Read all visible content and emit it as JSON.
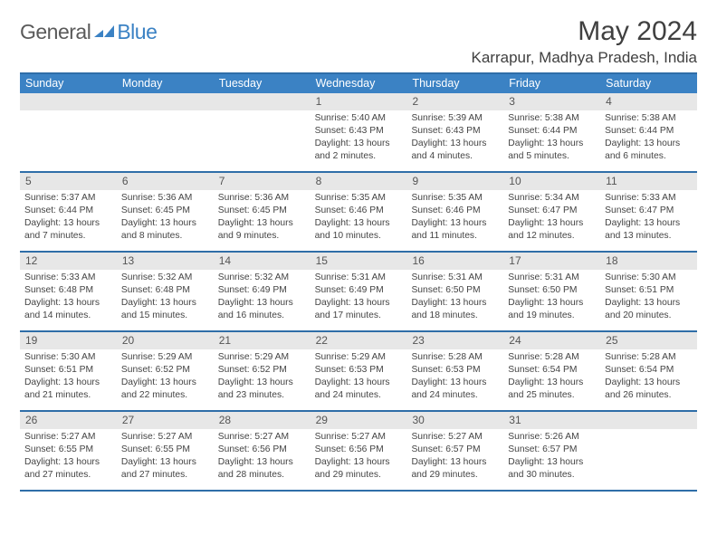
{
  "brand": {
    "part1": "General",
    "part2": "Blue",
    "accent": "#3b82c4",
    "text_color": "#5a5a5a"
  },
  "title": "May 2024",
  "location": "Karrapur, Madhya Pradesh, India",
  "colors": {
    "header_bg": "#3b82c4",
    "border": "#2f6ea8",
    "daynum_bg": "#e7e7e7",
    "page_bg": "#ffffff",
    "body_text": "#3a3a3a"
  },
  "day_names": [
    "Sunday",
    "Monday",
    "Tuesday",
    "Wednesday",
    "Thursday",
    "Friday",
    "Saturday"
  ],
  "weeks": [
    [
      {
        "n": "",
        "sunrise": "",
        "sunset": "",
        "daylight": ""
      },
      {
        "n": "",
        "sunrise": "",
        "sunset": "",
        "daylight": ""
      },
      {
        "n": "",
        "sunrise": "",
        "sunset": "",
        "daylight": ""
      },
      {
        "n": "1",
        "sunrise": "Sunrise: 5:40 AM",
        "sunset": "Sunset: 6:43 PM",
        "daylight": "Daylight: 13 hours and 2 minutes."
      },
      {
        "n": "2",
        "sunrise": "Sunrise: 5:39 AM",
        "sunset": "Sunset: 6:43 PM",
        "daylight": "Daylight: 13 hours and 4 minutes."
      },
      {
        "n": "3",
        "sunrise": "Sunrise: 5:38 AM",
        "sunset": "Sunset: 6:44 PM",
        "daylight": "Daylight: 13 hours and 5 minutes."
      },
      {
        "n": "4",
        "sunrise": "Sunrise: 5:38 AM",
        "sunset": "Sunset: 6:44 PM",
        "daylight": "Daylight: 13 hours and 6 minutes."
      }
    ],
    [
      {
        "n": "5",
        "sunrise": "Sunrise: 5:37 AM",
        "sunset": "Sunset: 6:44 PM",
        "daylight": "Daylight: 13 hours and 7 minutes."
      },
      {
        "n": "6",
        "sunrise": "Sunrise: 5:36 AM",
        "sunset": "Sunset: 6:45 PM",
        "daylight": "Daylight: 13 hours and 8 minutes."
      },
      {
        "n": "7",
        "sunrise": "Sunrise: 5:36 AM",
        "sunset": "Sunset: 6:45 PM",
        "daylight": "Daylight: 13 hours and 9 minutes."
      },
      {
        "n": "8",
        "sunrise": "Sunrise: 5:35 AM",
        "sunset": "Sunset: 6:46 PM",
        "daylight": "Daylight: 13 hours and 10 minutes."
      },
      {
        "n": "9",
        "sunrise": "Sunrise: 5:35 AM",
        "sunset": "Sunset: 6:46 PM",
        "daylight": "Daylight: 13 hours and 11 minutes."
      },
      {
        "n": "10",
        "sunrise": "Sunrise: 5:34 AM",
        "sunset": "Sunset: 6:47 PM",
        "daylight": "Daylight: 13 hours and 12 minutes."
      },
      {
        "n": "11",
        "sunrise": "Sunrise: 5:33 AM",
        "sunset": "Sunset: 6:47 PM",
        "daylight": "Daylight: 13 hours and 13 minutes."
      }
    ],
    [
      {
        "n": "12",
        "sunrise": "Sunrise: 5:33 AM",
        "sunset": "Sunset: 6:48 PM",
        "daylight": "Daylight: 13 hours and 14 minutes."
      },
      {
        "n": "13",
        "sunrise": "Sunrise: 5:32 AM",
        "sunset": "Sunset: 6:48 PM",
        "daylight": "Daylight: 13 hours and 15 minutes."
      },
      {
        "n": "14",
        "sunrise": "Sunrise: 5:32 AM",
        "sunset": "Sunset: 6:49 PM",
        "daylight": "Daylight: 13 hours and 16 minutes."
      },
      {
        "n": "15",
        "sunrise": "Sunrise: 5:31 AM",
        "sunset": "Sunset: 6:49 PM",
        "daylight": "Daylight: 13 hours and 17 minutes."
      },
      {
        "n": "16",
        "sunrise": "Sunrise: 5:31 AM",
        "sunset": "Sunset: 6:50 PM",
        "daylight": "Daylight: 13 hours and 18 minutes."
      },
      {
        "n": "17",
        "sunrise": "Sunrise: 5:31 AM",
        "sunset": "Sunset: 6:50 PM",
        "daylight": "Daylight: 13 hours and 19 minutes."
      },
      {
        "n": "18",
        "sunrise": "Sunrise: 5:30 AM",
        "sunset": "Sunset: 6:51 PM",
        "daylight": "Daylight: 13 hours and 20 minutes."
      }
    ],
    [
      {
        "n": "19",
        "sunrise": "Sunrise: 5:30 AM",
        "sunset": "Sunset: 6:51 PM",
        "daylight": "Daylight: 13 hours and 21 minutes."
      },
      {
        "n": "20",
        "sunrise": "Sunrise: 5:29 AM",
        "sunset": "Sunset: 6:52 PM",
        "daylight": "Daylight: 13 hours and 22 minutes."
      },
      {
        "n": "21",
        "sunrise": "Sunrise: 5:29 AM",
        "sunset": "Sunset: 6:52 PM",
        "daylight": "Daylight: 13 hours and 23 minutes."
      },
      {
        "n": "22",
        "sunrise": "Sunrise: 5:29 AM",
        "sunset": "Sunset: 6:53 PM",
        "daylight": "Daylight: 13 hours and 24 minutes."
      },
      {
        "n": "23",
        "sunrise": "Sunrise: 5:28 AM",
        "sunset": "Sunset: 6:53 PM",
        "daylight": "Daylight: 13 hours and 24 minutes."
      },
      {
        "n": "24",
        "sunrise": "Sunrise: 5:28 AM",
        "sunset": "Sunset: 6:54 PM",
        "daylight": "Daylight: 13 hours and 25 minutes."
      },
      {
        "n": "25",
        "sunrise": "Sunrise: 5:28 AM",
        "sunset": "Sunset: 6:54 PM",
        "daylight": "Daylight: 13 hours and 26 minutes."
      }
    ],
    [
      {
        "n": "26",
        "sunrise": "Sunrise: 5:27 AM",
        "sunset": "Sunset: 6:55 PM",
        "daylight": "Daylight: 13 hours and 27 minutes."
      },
      {
        "n": "27",
        "sunrise": "Sunrise: 5:27 AM",
        "sunset": "Sunset: 6:55 PM",
        "daylight": "Daylight: 13 hours and 27 minutes."
      },
      {
        "n": "28",
        "sunrise": "Sunrise: 5:27 AM",
        "sunset": "Sunset: 6:56 PM",
        "daylight": "Daylight: 13 hours and 28 minutes."
      },
      {
        "n": "29",
        "sunrise": "Sunrise: 5:27 AM",
        "sunset": "Sunset: 6:56 PM",
        "daylight": "Daylight: 13 hours and 29 minutes."
      },
      {
        "n": "30",
        "sunrise": "Sunrise: 5:27 AM",
        "sunset": "Sunset: 6:57 PM",
        "daylight": "Daylight: 13 hours and 29 minutes."
      },
      {
        "n": "31",
        "sunrise": "Sunrise: 5:26 AM",
        "sunset": "Sunset: 6:57 PM",
        "daylight": "Daylight: 13 hours and 30 minutes."
      },
      {
        "n": "",
        "sunrise": "",
        "sunset": "",
        "daylight": ""
      }
    ]
  ]
}
